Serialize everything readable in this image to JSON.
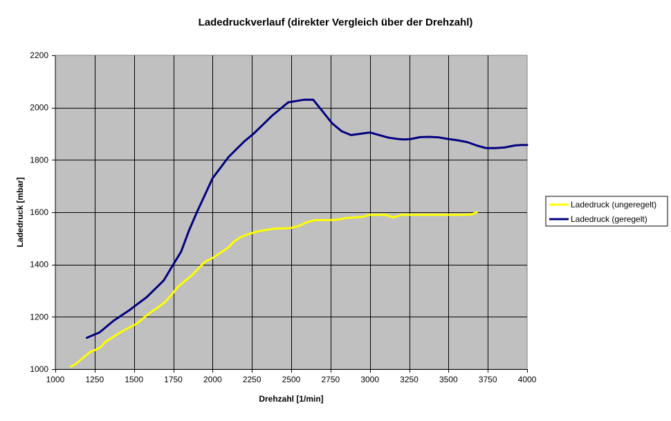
{
  "chart_data": {
    "type": "line",
    "title": "Ladedruckverlauf (direkter Vergleich über der Drehzahl)",
    "xlabel": "Drehzahl [1/min]",
    "ylabel": "Ladedruck [mbar]",
    "xlim": [
      1000,
      4000
    ],
    "ylim": [
      1000,
      2200
    ],
    "xticks": [
      1000,
      1250,
      1500,
      1750,
      2000,
      2250,
      2500,
      2750,
      3000,
      3250,
      3500,
      3750,
      4000
    ],
    "yticks": [
      1000,
      1200,
      1400,
      1600,
      1800,
      2000,
      2200
    ],
    "grid": true,
    "plot_background": "#C0C0C0",
    "legend_position": "right",
    "series": [
      {
        "name": "Ladedruck (ungeregelt)",
        "color": "#FFFF00",
        "x": [
          1100,
          1130,
          1180,
          1220,
          1260,
          1290,
          1320,
          1360,
          1400,
          1440,
          1480,
          1520,
          1560,
          1600,
          1650,
          1700,
          1740,
          1780,
          1830,
          1870,
          1910,
          1950,
          2000,
          2050,
          2100,
          2140,
          2180,
          2220,
          2260,
          2300,
          2350,
          2400,
          2450,
          2500,
          2550,
          2600,
          2650,
          2700,
          2750,
          2800,
          2850,
          2900,
          2950,
          3000,
          3050,
          3100,
          3150,
          3200,
          3250,
          3300,
          3400,
          3500,
          3600,
          3650,
          3680
        ],
        "values": [
          1010,
          1020,
          1045,
          1065,
          1075,
          1085,
          1105,
          1120,
          1135,
          1150,
          1162,
          1175,
          1195,
          1215,
          1235,
          1258,
          1285,
          1315,
          1340,
          1360,
          1385,
          1410,
          1425,
          1445,
          1465,
          1490,
          1505,
          1515,
          1522,
          1528,
          1533,
          1538,
          1538,
          1540,
          1548,
          1562,
          1570,
          1570,
          1570,
          1572,
          1578,
          1580,
          1582,
          1590,
          1590,
          1590,
          1580,
          1590,
          1590,
          1590,
          1590,
          1590,
          1590,
          1592,
          1600
        ]
      },
      {
        "name": "Ladedruck (geregelt)",
        "color": "#000080",
        "x": [
          1200,
          1240,
          1280,
          1320,
          1370,
          1420,
          1470,
          1520,
          1580,
          1640,
          1690,
          1740,
          1800,
          1850,
          1900,
          1950,
          2000,
          2050,
          2100,
          2150,
          2200,
          2260,
          2320,
          2380,
          2430,
          2480,
          2530,
          2580,
          2640,
          2700,
          2760,
          2820,
          2880,
          2940,
          3000,
          3060,
          3120,
          3180,
          3220,
          3260,
          3320,
          3380,
          3440,
          3500,
          3560,
          3620,
          3680,
          3740,
          3800,
          3860,
          3920,
          3960,
          4000
        ],
        "values": [
          1120,
          1130,
          1140,
          1160,
          1185,
          1205,
          1225,
          1248,
          1275,
          1310,
          1340,
          1390,
          1450,
          1530,
          1600,
          1665,
          1730,
          1770,
          1810,
          1840,
          1870,
          1900,
          1935,
          1970,
          1995,
          2020,
          2025,
          2030,
          2030,
          1985,
          1940,
          1910,
          1895,
          1900,
          1905,
          1895,
          1885,
          1880,
          1878,
          1880,
          1887,
          1888,
          1886,
          1880,
          1875,
          1868,
          1855,
          1845,
          1845,
          1848,
          1855,
          1857,
          1857
        ]
      }
    ]
  }
}
